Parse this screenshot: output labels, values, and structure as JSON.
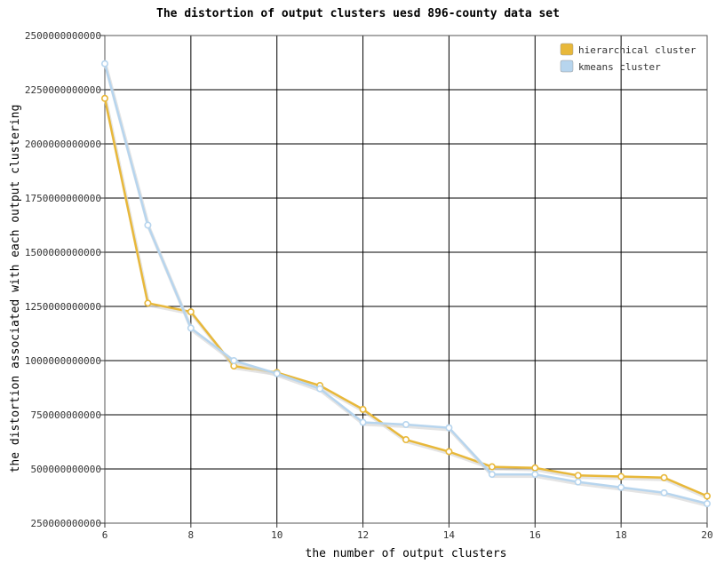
{
  "chart_data": {
    "type": "line",
    "title": "The distortion of output clusters uesd 896-county data set",
    "xlabel": "the number of output clusters",
    "ylabel": "the distortion associated with each output clustering",
    "xlim": [
      6,
      20
    ],
    "ylim": [
      250000000000,
      2500000000000
    ],
    "x_ticks": [
      "6",
      "8",
      "10",
      "12",
      "14",
      "16",
      "18",
      "20"
    ],
    "y_ticks": [
      "250000000000",
      "500000000000",
      "750000000000",
      "1000000000000",
      "1250000000000",
      "1500000000000",
      "1750000000000",
      "2000000000000",
      "2250000000000",
      "2500000000000"
    ],
    "grid": true,
    "legend_position": "top-right",
    "x": [
      6,
      7,
      8,
      9,
      10,
      11,
      12,
      13,
      14,
      15,
      16,
      17,
      18,
      19,
      20
    ],
    "series": [
      {
        "name": "hierarchical cluster",
        "color": "#e8b83a",
        "values": [
          2210000000000,
          1265000000000,
          1225000000000,
          975000000000,
          945000000000,
          885000000000,
          775000000000,
          635000000000,
          580000000000,
          510000000000,
          505000000000,
          470000000000,
          465000000000,
          460000000000,
          375000000000
        ]
      },
      {
        "name": "kmeans cluster",
        "color": "#b7d5ee",
        "values": [
          2370000000000,
          1625000000000,
          1150000000000,
          1000000000000,
          940000000000,
          870000000000,
          715000000000,
          705000000000,
          690000000000,
          475000000000,
          475000000000,
          440000000000,
          415000000000,
          390000000000,
          340000000000
        ]
      }
    ]
  }
}
